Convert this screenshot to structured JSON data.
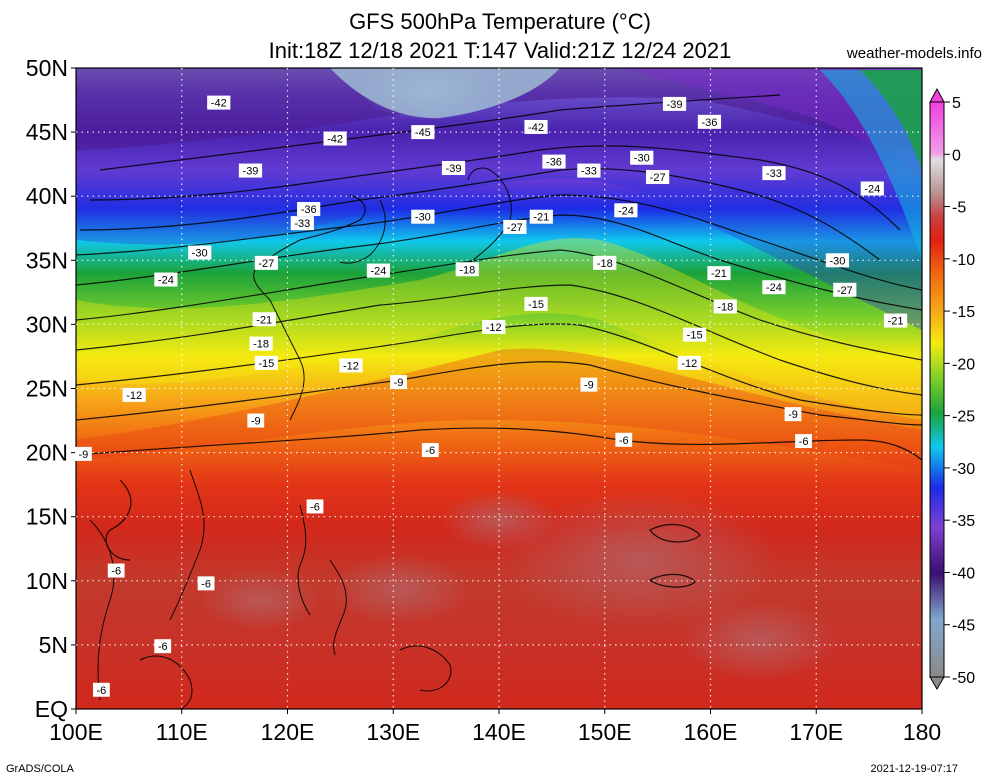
{
  "header": {
    "title": "GFS 500hPa Temperature (°C)",
    "subtitle": "Init:18Z 12/18 2021 T:147 Valid:21Z 12/24 2021",
    "brand": "weather-models.info"
  },
  "footer": {
    "left": "GrADS/COLA",
    "right": "2021-12-19-07:17"
  },
  "map": {
    "lat_ticks": [
      "50N",
      "45N",
      "40N",
      "35N",
      "30N",
      "25N",
      "20N",
      "15N",
      "10N",
      "5N",
      "EQ"
    ],
    "lon_ticks": [
      "100E",
      "110E",
      "120E",
      "130E",
      "140E",
      "150E",
      "160E",
      "170E",
      "180"
    ],
    "lat_range": [
      0,
      50
    ],
    "lon_range": [
      100,
      180
    ],
    "grid": "dotted",
    "contour_labels": [
      {
        "text": "-42",
        "lon": 113.5,
        "lat": 47.3
      },
      {
        "text": "-42",
        "lon": 124.5,
        "lat": 44.5
      },
      {
        "text": "-45",
        "lon": 132.8,
        "lat": 45.0
      },
      {
        "text": "-42",
        "lon": 143.5,
        "lat": 45.4
      },
      {
        "text": "-39",
        "lon": 156.6,
        "lat": 47.2
      },
      {
        "text": "-36",
        "lon": 159.9,
        "lat": 45.8
      },
      {
        "text": "-39",
        "lon": 116.5,
        "lat": 42.0
      },
      {
        "text": "-39",
        "lon": 135.7,
        "lat": 42.2
      },
      {
        "text": "-36",
        "lon": 145.2,
        "lat": 42.7
      },
      {
        "text": "-33",
        "lon": 148.5,
        "lat": 42.0
      },
      {
        "text": "-30",
        "lon": 153.5,
        "lat": 43.0
      },
      {
        "text": "-27",
        "lon": 155.0,
        "lat": 41.5
      },
      {
        "text": "-33",
        "lon": 166.0,
        "lat": 41.8
      },
      {
        "text": "-24",
        "lon": 175.3,
        "lat": 40.6
      },
      {
        "text": "-36",
        "lon": 122.0,
        "lat": 39.0
      },
      {
        "text": "-33",
        "lon": 121.4,
        "lat": 37.9
      },
      {
        "text": "-30",
        "lon": 132.8,
        "lat": 38.4
      },
      {
        "text": "-27",
        "lon": 141.5,
        "lat": 37.6
      },
      {
        "text": "-21",
        "lon": 144.0,
        "lat": 38.4
      },
      {
        "text": "-24",
        "lon": 152.0,
        "lat": 38.9
      },
      {
        "text": "-30",
        "lon": 111.7,
        "lat": 35.6
      },
      {
        "text": "-27",
        "lon": 118.0,
        "lat": 34.8
      },
      {
        "text": "-24",
        "lon": 128.6,
        "lat": 34.2
      },
      {
        "text": "-18",
        "lon": 137.0,
        "lat": 34.3
      },
      {
        "text": "-18",
        "lon": 150.0,
        "lat": 34.8
      },
      {
        "text": "-21",
        "lon": 160.8,
        "lat": 34.0
      },
      {
        "text": "-24",
        "lon": 166.0,
        "lat": 32.9
      },
      {
        "text": "-27",
        "lon": 172.7,
        "lat": 32.7
      },
      {
        "text": "-30",
        "lon": 172.0,
        "lat": 35.0
      },
      {
        "text": "-24",
        "lon": 108.5,
        "lat": 33.5
      },
      {
        "text": "-15",
        "lon": 143.5,
        "lat": 31.6
      },
      {
        "text": "-18",
        "lon": 161.4,
        "lat": 31.4
      },
      {
        "text": "-21",
        "lon": 177.5,
        "lat": 30.3
      },
      {
        "text": "-21",
        "lon": 117.8,
        "lat": 30.4
      },
      {
        "text": "-12",
        "lon": 139.5,
        "lat": 29.8
      },
      {
        "text": "-15",
        "lon": 158.5,
        "lat": 29.2
      },
      {
        "text": "-18",
        "lon": 117.5,
        "lat": 28.5
      },
      {
        "text": "-15",
        "lon": 118.0,
        "lat": 27.0
      },
      {
        "text": "-12",
        "lon": 126.0,
        "lat": 26.8
      },
      {
        "text": "-12",
        "lon": 158.0,
        "lat": 27.0
      },
      {
        "text": "-9",
        "lon": 130.5,
        "lat": 25.5
      },
      {
        "text": "-9",
        "lon": 148.5,
        "lat": 25.3
      },
      {
        "text": "-12",
        "lon": 105.5,
        "lat": 24.5
      },
      {
        "text": "-9",
        "lon": 117.0,
        "lat": 22.5
      },
      {
        "text": "-9",
        "lon": 167.8,
        "lat": 23.0
      },
      {
        "text": "-9",
        "lon": 100.7,
        "lat": 19.9
      },
      {
        "text": "-6",
        "lon": 133.5,
        "lat": 20.2
      },
      {
        "text": "-6",
        "lon": 151.8,
        "lat": 21.0
      },
      {
        "text": "-6",
        "lon": 168.8,
        "lat": 20.9
      },
      {
        "text": "-6",
        "lon": 122.6,
        "lat": 15.8
      },
      {
        "text": "-6",
        "lon": 103.8,
        "lat": 10.8
      },
      {
        "text": "-6",
        "lon": 112.3,
        "lat": 9.8
      },
      {
        "text": "-6",
        "lon": 108.2,
        "lat": 4.9
      },
      {
        "text": "-6",
        "lon": 102.4,
        "lat": 1.5
      }
    ]
  },
  "colorbar": {
    "labels": [
      "5",
      "0",
      "-5",
      "-10",
      "-15",
      "-20",
      "-25",
      "-30",
      "-35",
      "-40",
      "-45",
      "-50"
    ],
    "range": [
      -50,
      5
    ],
    "unit": "°C"
  },
  "colors": {
    "warm_core": "#b24e52",
    "red": "#d8261b",
    "orange": "#f27a12",
    "yellow": "#f6ef0c",
    "green": "#3aa020",
    "cyan": "#12d6ea",
    "blue": "#1a2fe0",
    "purple": "#5b1a9a",
    "steel": "#7fa4c8"
  }
}
